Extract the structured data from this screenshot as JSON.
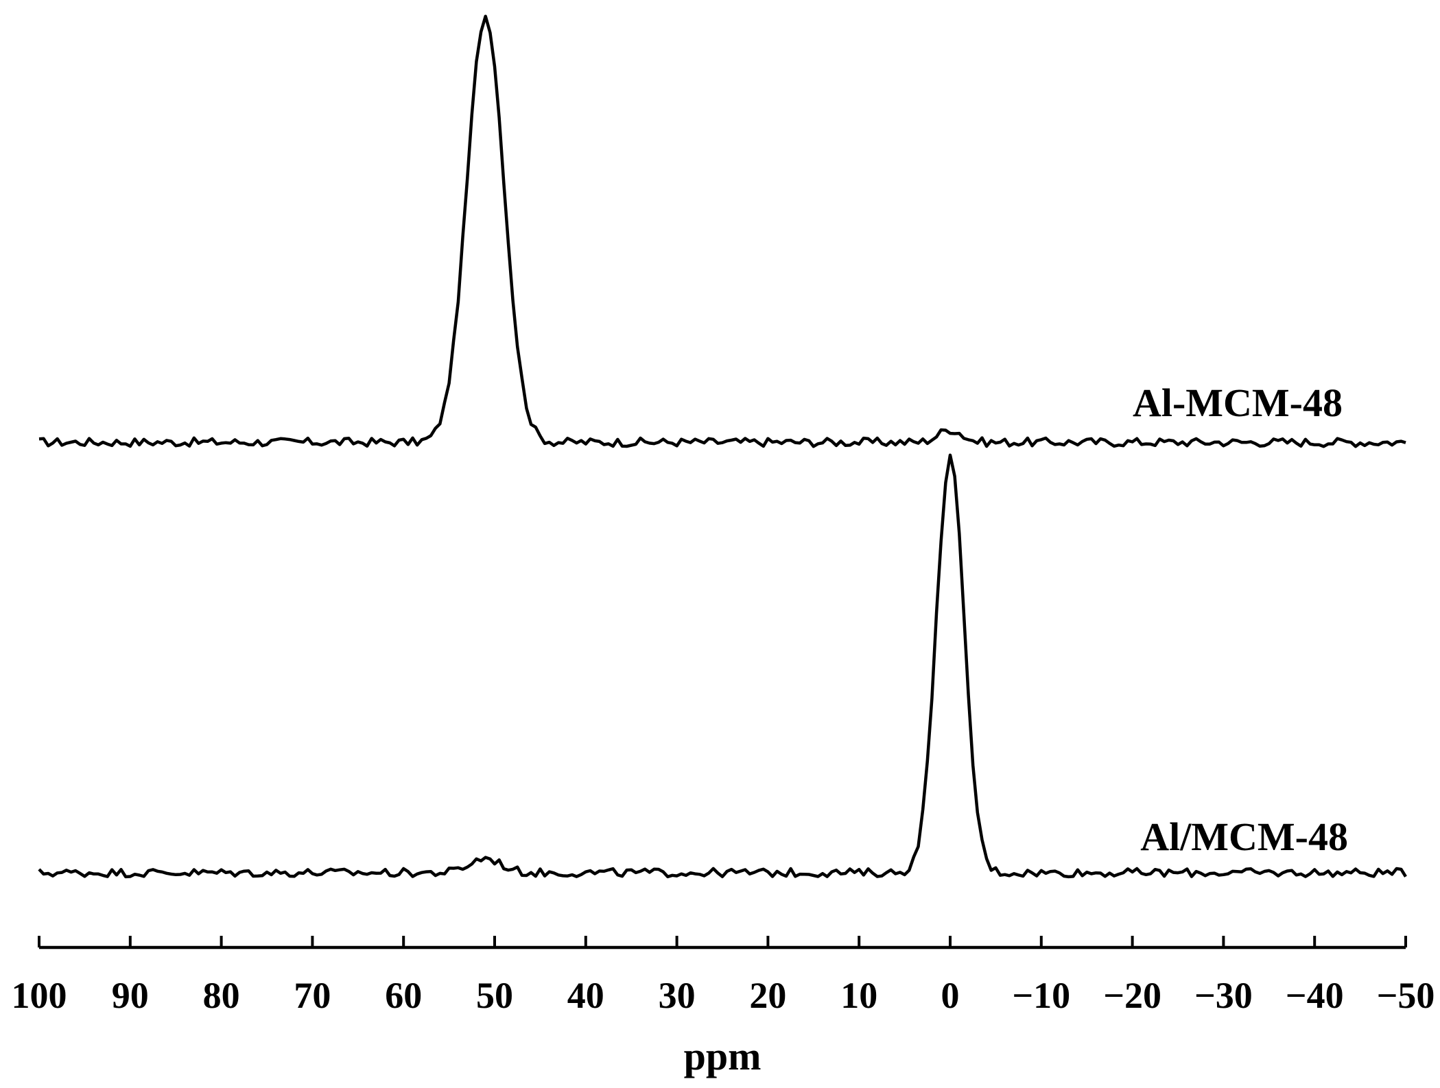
{
  "chart_data": {
    "type": "line",
    "title": "",
    "xlabel": "ppm",
    "ylabel": "",
    "xlim": [
      100,
      -50
    ],
    "x_reversed": true,
    "y_axis_shown": false,
    "grid": false,
    "legend": "none",
    "x_ticks": [
      100,
      90,
      80,
      70,
      60,
      50,
      40,
      30,
      20,
      10,
      0,
      -10,
      -20,
      -30,
      -40,
      -50
    ],
    "x_tick_labels": [
      "100",
      "90",
      "80",
      "70",
      "60",
      "50",
      "40",
      "30",
      "20",
      "10",
      "0",
      "−10",
      "−20",
      "−30",
      "−40",
      "−50"
    ],
    "line_color": "#000000",
    "series": [
      {
        "name": "Al-MCM-48",
        "peaks": [
          {
            "center_ppm": 51,
            "height": 1.0,
            "half_width_ppm": 2.4
          },
          {
            "center_ppm": 0,
            "height": 0.03,
            "half_width_ppm": 1.5
          }
        ],
        "points": [
          [
            100,
            0
          ],
          [
            70,
            0
          ],
          [
            58,
            0
          ],
          [
            56,
            0.02
          ],
          [
            55,
            0.15
          ],
          [
            54,
            0.38
          ],
          [
            53,
            0.62
          ],
          [
            52,
            0.87
          ],
          [
            51,
            1.0
          ],
          [
            50,
            0.88
          ],
          [
            49,
            0.5
          ],
          [
            48,
            0.2
          ],
          [
            47,
            0.05
          ],
          [
            46,
            0.01
          ],
          [
            44,
            0
          ],
          [
            20,
            0
          ],
          [
            2,
            0
          ],
          [
            1,
            0.02
          ],
          [
            0,
            0.03
          ],
          [
            -1,
            0.02
          ],
          [
            -3,
            0
          ],
          [
            -50,
            0
          ]
        ]
      },
      {
        "name": "Al/MCM-48",
        "peaks": [
          {
            "center_ppm": 0,
            "height": 1.0,
            "half_width_ppm": 1.8
          },
          {
            "center_ppm": 51,
            "height": 0.035,
            "half_width_ppm": 2
          }
        ],
        "points": [
          [
            100,
            0
          ],
          [
            60,
            0
          ],
          [
            53,
            0
          ],
          [
            52,
            0.02
          ],
          [
            51,
            0.035
          ],
          [
            50,
            0.025
          ],
          [
            49,
            0.01
          ],
          [
            47,
            0
          ],
          [
            10,
            0
          ],
          [
            4,
            0
          ],
          [
            3,
            0.12
          ],
          [
            2,
            0.5
          ],
          [
            1,
            0.88
          ],
          [
            0,
            1.0
          ],
          [
            -1,
            0.82
          ],
          [
            -2,
            0.45
          ],
          [
            -3,
            0.07
          ],
          [
            -4,
            0
          ],
          [
            -50,
            0
          ]
        ]
      }
    ]
  }
}
